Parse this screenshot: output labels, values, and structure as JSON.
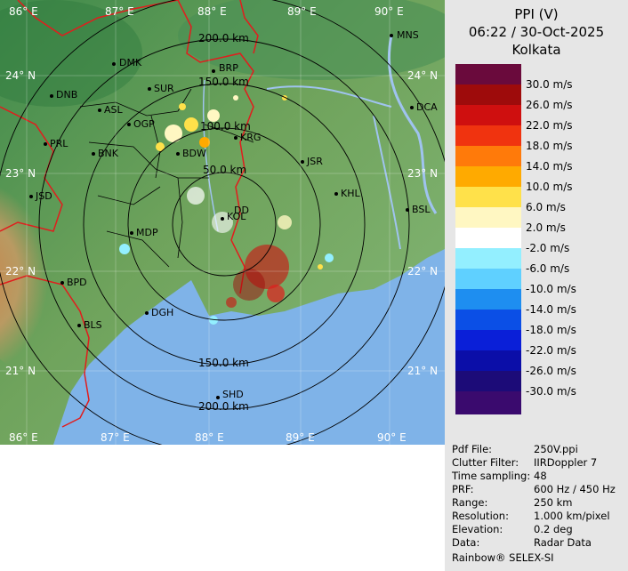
{
  "map": {
    "lon_labels": [
      "86° E",
      "87° E",
      "88° E",
      "89° E",
      "90° E"
    ],
    "lat_labels": [
      "24° N",
      "23° N",
      "22° N",
      "21° N"
    ],
    "ring_labels": [
      "200.0 km",
      "150.0 km",
      "100.0 km",
      "50.0 km",
      "150.0 km",
      "200.0 km"
    ],
    "cities": [
      "MNS",
      "DMK",
      "BRP",
      "DNB",
      "SUR",
      "DCA",
      "ASL",
      "OGP",
      "PRL",
      "KRG",
      "BNK",
      "BDW",
      "JSR",
      "KHL",
      "JSD",
      "BSL",
      "MDP",
      "BPD",
      "DGH",
      "BLS",
      "SHD",
      "KOL",
      "DD"
    ],
    "colors": {
      "sea": "#7fb3e8",
      "land": "#6fa35c",
      "rings": "#000000",
      "coast": "#e11d1d"
    }
  },
  "panel": {
    "title_line1": "PPI (V)",
    "title_line2": "06:22 / 30-Oct-2025",
    "title_line3": "Kolkata",
    "scale": [
      {
        "label": "30.0 m/s",
        "color": "#6a0a3c"
      },
      {
        "label": "26.0 m/s",
        "color": "#9e0b0b"
      },
      {
        "label": "22.0 m/s",
        "color": "#cf0f0f"
      },
      {
        "label": "18.0 m/s",
        "color": "#f0330f"
      },
      {
        "label": "14.0 m/s",
        "color": "#ff7a0a"
      },
      {
        "label": "10.0 m/s",
        "color": "#ffaa00"
      },
      {
        "label": "6.0 m/s",
        "color": "#ffe14a"
      },
      {
        "label": "2.0 m/s",
        "color": "#fff7c2"
      },
      {
        "label": "-2.0 m/s",
        "color": "#ffffff"
      },
      {
        "label": "-6.0 m/s",
        "color": "#93efff"
      },
      {
        "label": "-10.0 m/s",
        "color": "#5fd0ff"
      },
      {
        "label": "-14.0 m/s",
        "color": "#1e8ef0"
      },
      {
        "label": "-18.0 m/s",
        "color": "#0b4fe6"
      },
      {
        "label": "-22.0 m/s",
        "color": "#0a1fd8"
      },
      {
        "label": "-26.0 m/s",
        "color": "#0b0ea8"
      },
      {
        "label": "-30.0 m/s",
        "color": "#1c0b78"
      },
      {
        "label": "",
        "color": "#3a0a6e"
      }
    ],
    "info": [
      {
        "key": "Pdf File:",
        "value": "250V.ppi"
      },
      {
        "key": "Clutter Filter:",
        "value": "IIRDoppler 7"
      },
      {
        "key": "Time sampling:",
        "value": "48"
      },
      {
        "key": "PRF:",
        "value": "600 Hz / 450 Hz"
      },
      {
        "key": "Range:",
        "value": "250 km"
      },
      {
        "key": "Resolution:",
        "value": "1.000 km/pixel"
      },
      {
        "key": "Elevation:",
        "value": "0.2 deg"
      },
      {
        "key": "Data:",
        "value": "Radar Data"
      }
    ],
    "brand": "Rainbow® SELEX-SI"
  }
}
